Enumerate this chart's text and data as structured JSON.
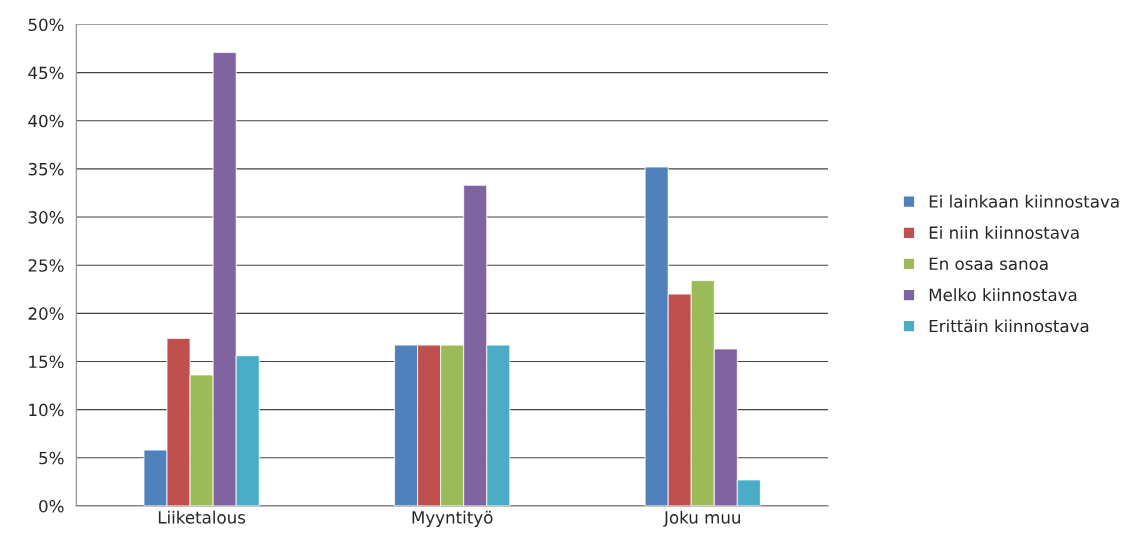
{
  "chart_data": {
    "type": "bar",
    "categories": [
      "Liiketalous",
      "Myyntityö",
      "Joku muu"
    ],
    "series": [
      {
        "name": "Ei lainkaan kiinnostava",
        "color": "#4f81bd",
        "values": [
          5.8,
          16.7,
          35.2
        ]
      },
      {
        "name": "Ei niin kiinnostava",
        "color": "#c0504d",
        "values": [
          17.4,
          16.7,
          22.0
        ]
      },
      {
        "name": "En osaa sanoa",
        "color": "#9bbb59",
        "values": [
          13.6,
          16.7,
          23.4
        ]
      },
      {
        "name": "Melko kiinnostava",
        "color": "#8064a2",
        "values": [
          47.1,
          33.3,
          16.3
        ]
      },
      {
        "name": "Erittäin kiinnostava",
        "color": "#4bacc6",
        "values": [
          15.6,
          16.7,
          2.7
        ]
      }
    ],
    "ylim": [
      0,
      50
    ],
    "yticks": [
      {
        "value": 0,
        "label": "0%"
      },
      {
        "value": 5,
        "label": "5%"
      },
      {
        "value": 10,
        "label": "10%"
      },
      {
        "value": 15,
        "label": "15%"
      },
      {
        "value": 20,
        "label": "20%"
      },
      {
        "value": 25,
        "label": "25%"
      },
      {
        "value": 30,
        "label": "30%"
      },
      {
        "value": 35,
        "label": "35%"
      },
      {
        "value": 40,
        "label": "40%"
      },
      {
        "value": 45,
        "label": "45%"
      },
      {
        "value": 50,
        "label": "50%"
      }
    ],
    "grid": "y",
    "legend": "right"
  }
}
